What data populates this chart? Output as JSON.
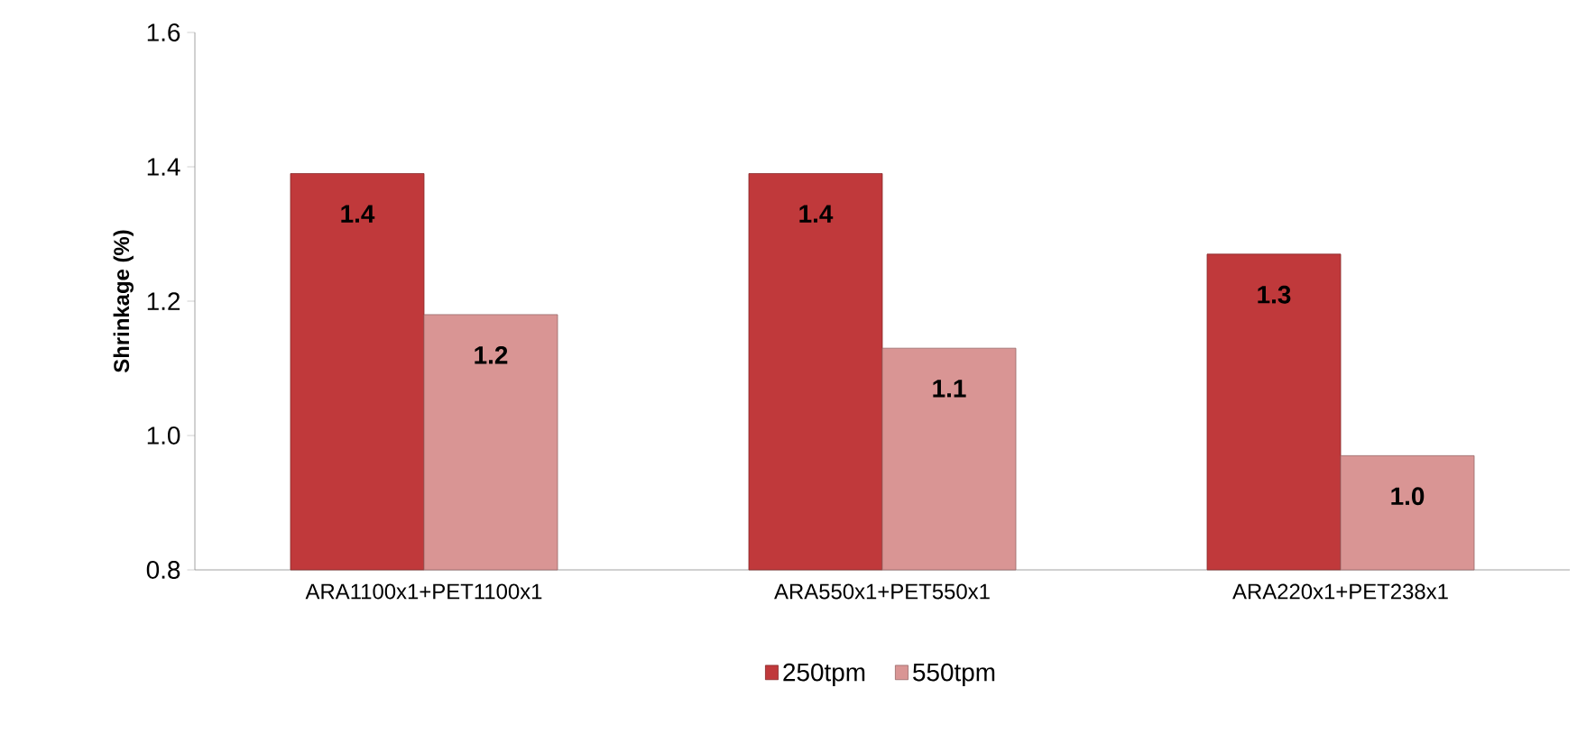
{
  "chart_data": {
    "type": "bar",
    "ylabel": "Shrinkage (%)",
    "categories": [
      "ARA1100x1+PET1100x1",
      "ARA550x1+PET550x1",
      "ARA220x1+PET238x1"
    ],
    "series": [
      {
        "name": "250tpm",
        "color": "#c0393b",
        "values": [
          1.39,
          1.39,
          1.27
        ],
        "value_labels": [
          "1.4",
          "1.4",
          "1.3"
        ]
      },
      {
        "name": "550tpm",
        "color": "#d99594",
        "values": [
          1.18,
          1.13,
          0.97
        ],
        "value_labels": [
          "1.2",
          "1.1",
          "1.0"
        ]
      }
    ],
    "ylim": [
      0.8,
      1.6
    ],
    "yticks": [
      {
        "value": 0.8,
        "label": "0.8"
      },
      {
        "value": 1.0,
        "label": "1.0"
      },
      {
        "value": 1.2,
        "label": "1.2"
      },
      {
        "value": 1.4,
        "label": "1.4"
      },
      {
        "value": 1.6,
        "label": "1.6"
      }
    ],
    "grid": false,
    "legend": "bottom"
  }
}
